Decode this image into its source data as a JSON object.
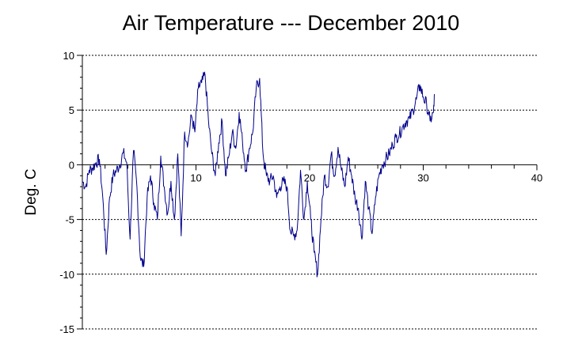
{
  "chart_data": {
    "type": "line",
    "title": "Air Temperature --- December 2010",
    "xlabel": "",
    "ylabel": "Deg. C",
    "xlim": [
      0,
      40
    ],
    "ylim": [
      -15,
      10
    ],
    "x_ticks": [
      10,
      20,
      30,
      40
    ],
    "y_ticks": [
      10,
      5,
      0,
      -5,
      -10,
      -15
    ],
    "x_tick_labels": [
      "10",
      "20",
      "30",
      "40"
    ],
    "y_tick_labels": [
      "10",
      "5",
      "0",
      "-5",
      "-10",
      "-15"
    ],
    "grid": "horizontal dashed",
    "line_color": "#00008b",
    "series": [
      {
        "x": [
          0.0,
          0.3,
          0.6,
          0.9,
          1.2,
          1.5,
          1.8,
          2.1,
          2.4,
          2.7,
          3.0,
          3.3,
          3.6,
          3.9,
          4.2,
          4.5,
          4.8,
          5.1,
          5.4,
          5.7,
          6.0,
          6.3,
          6.6,
          6.9,
          7.2,
          7.5,
          7.8,
          8.1,
          8.4,
          8.7,
          9.0,
          9.3,
          9.6,
          9.9,
          10.2,
          10.5,
          10.8,
          11.1,
          11.4,
          11.7,
          12.0,
          12.3,
          12.6,
          12.9,
          13.2,
          13.5,
          13.8,
          14.1,
          14.4,
          14.7,
          15.0,
          15.3,
          15.6,
          15.9,
          16.2,
          16.5,
          16.8,
          17.1,
          17.4,
          17.7,
          18.0,
          18.3,
          18.6,
          18.9,
          19.2,
          19.5,
          19.8,
          20.1,
          20.4,
          20.7,
          21.0,
          21.3,
          21.6,
          21.9,
          22.2,
          22.5,
          22.8,
          23.1,
          23.4,
          23.7,
          24.0,
          24.3,
          24.6,
          24.9,
          25.2,
          25.5,
          25.8,
          26.1,
          26.4,
          26.7,
          27.0,
          27.3,
          27.6,
          27.9,
          28.2,
          28.5,
          28.8,
          29.1,
          29.4,
          29.7,
          30.0,
          30.3,
          30.6,
          30.9,
          31.0
        ],
        "y": [
          -1.5,
          -2,
          -0.5,
          -0.3,
          0.2,
          0.5,
          -3,
          -8.2,
          -3,
          -1,
          -0.5,
          0,
          1.1,
          0.2,
          -6.8,
          1.3,
          -2,
          -8.5,
          -9.3,
          -3,
          -1,
          -3.5,
          -5,
          0.8,
          -2,
          -4.5,
          -1.5,
          -5,
          1,
          -6.5,
          3,
          2,
          4.5,
          3,
          7,
          7.5,
          8.2,
          4,
          1,
          -1,
          2,
          4,
          -1,
          0.8,
          3,
          1.5,
          4.8,
          2,
          -0.5,
          1.5,
          3,
          7,
          7.9,
          1,
          -1,
          -1.5,
          -1,
          -3,
          -2,
          -1.5,
          -2,
          -6,
          -6.5,
          -6,
          -0.5,
          -5,
          -1.5,
          -5,
          -8,
          -10,
          -5,
          -1,
          -2,
          1,
          -1,
          1.6,
          -0.5,
          -2,
          0.7,
          -1,
          -3,
          -4,
          -6.8,
          -1.5,
          -4,
          -6.3,
          -3,
          -1,
          0,
          0.5,
          1,
          1.8,
          2.5,
          2.8,
          3.5,
          4,
          4.2,
          5,
          6,
          7.3,
          6.2,
          5.5,
          4,
          4.8,
          6.4
        ]
      }
    ]
  }
}
